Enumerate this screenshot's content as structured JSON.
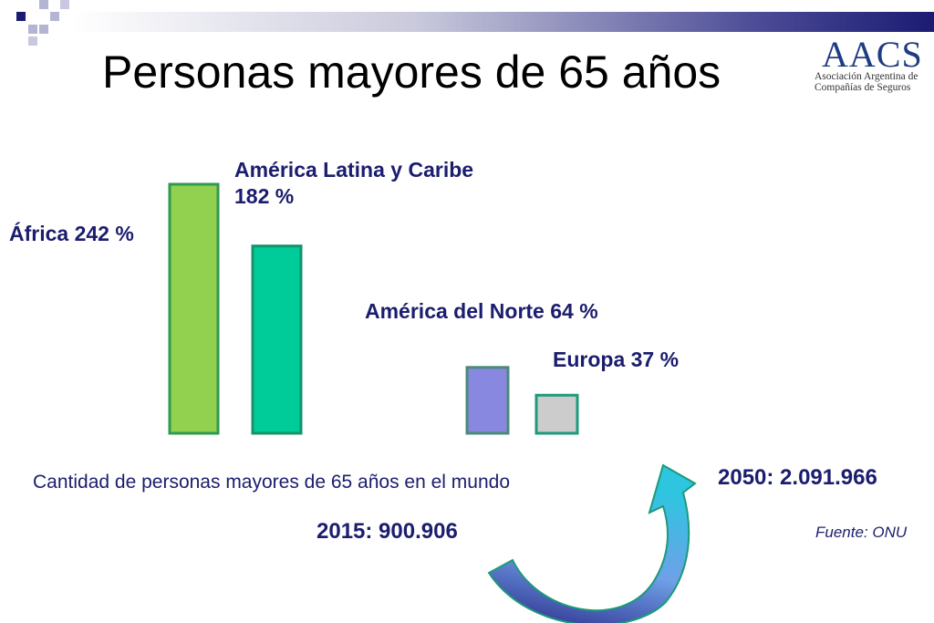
{
  "slide": {
    "title": "Personas mayores de 65 años",
    "caption": "Cantidad de personas mayores de 65 años en el mundo",
    "value_2015": "2015:  900.906",
    "value_2050": "2050:  2.091.966",
    "source": "Fuente: ONU"
  },
  "logo": {
    "mark": "AACS",
    "line1": "Asociación Argentina de",
    "line2": "Compañías de Seguros"
  },
  "labels": {
    "africa": "África 242 %",
    "latam_name": "América Latina y Caribe",
    "latam_value": "182 %",
    "north_america": "América del Norte 64 %",
    "europe": "Europa 37 %"
  },
  "colors": {
    "decor_blue": "#1b1b73",
    "decor_light": "#b4b4d4",
    "text_navy": "#1b1d6e"
  },
  "chart_data": {
    "type": "bar",
    "categories": [
      "África",
      "América Latina y Caribe",
      "América del Norte",
      "Europa"
    ],
    "values": [
      242,
      182,
      64,
      37
    ],
    "colors": [
      "#92d050",
      "#00cc99",
      "#8888e0",
      "#cccccc"
    ],
    "edge_colors": [
      "#2e9a4e",
      "#15936b",
      "#4a8a7a",
      "#1d9a7a"
    ],
    "unit": "%",
    "ylim": [
      0,
      242
    ]
  }
}
